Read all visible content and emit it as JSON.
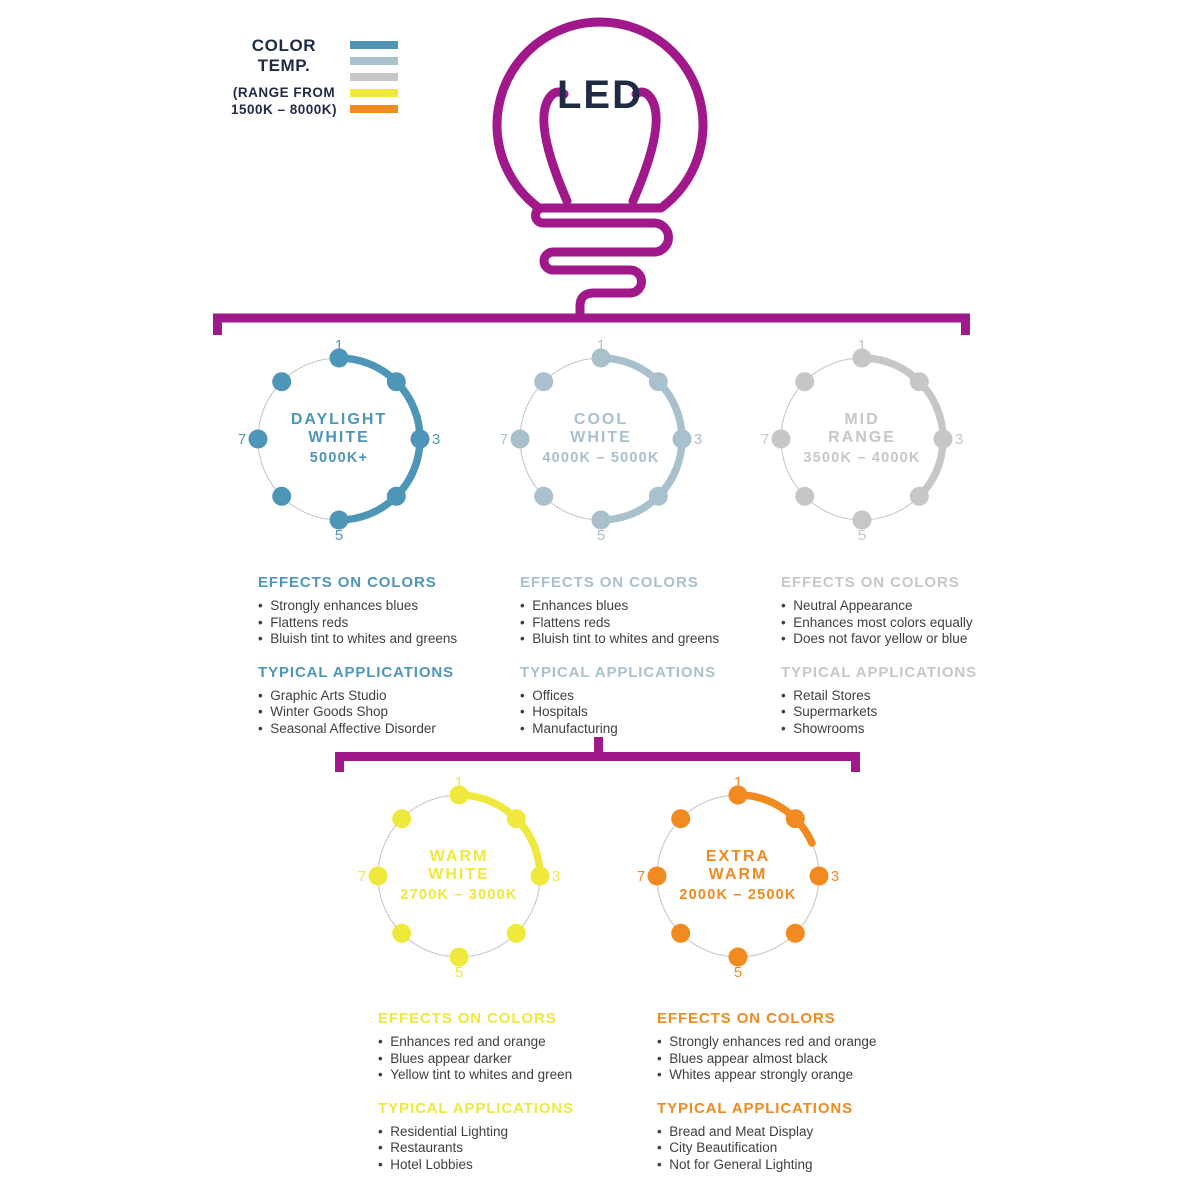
{
  "page": {
    "background": "#FFFFFF"
  },
  "colors": {
    "magenta": "#A1188B",
    "navy": "#1F2A44",
    "body_text": "#3F3F3F",
    "dial_track": "#C4C4C4"
  },
  "legend": {
    "title": "COLOR TEMP.",
    "subtitle_lines": [
      "(RANGE FROM",
      "1500K – 8000K)"
    ],
    "bar_colors": [
      "#4E96B8",
      "#A9C0CD",
      "#C7C7C9",
      "#EFE93D",
      "#F08A21"
    ]
  },
  "bulb": {
    "label": "LED"
  },
  "dial": {
    "tick_labels": {
      "top": "1",
      "right": "3",
      "bottom": "5",
      "left": "7"
    },
    "dot_count": 8
  },
  "panels": [
    {
      "name_lines": [
        "DAYLIGHT",
        "WHITE"
      ],
      "temp_range": "5000K+",
      "color": "#4E96B8",
      "coverage_deg": 180,
      "effects_title": "EFFECTS ON COLORS",
      "effects": [
        "Strongly enhances blues",
        "Flattens reds",
        "Bluish tint to whites and greens"
      ],
      "applications_title": "TYPICAL APPLICATIONS",
      "applications": [
        "Graphic Arts Studio",
        "Winter Goods Shop",
        "Seasonal Affective Disorder"
      ]
    },
    {
      "name_lines": [
        "COOL",
        "WHITE"
      ],
      "temp_range": "4000K – 5000K",
      "color": "#A9C0CD",
      "coverage_deg": 180,
      "effects_title": "EFFECTS ON COLORS",
      "effects": [
        "Enhances blues",
        "Flattens reds",
        "Bluish tint to whites and greens"
      ],
      "applications_title": "TYPICAL APPLICATIONS",
      "applications": [
        "Offices",
        "Hospitals",
        "Manufacturing"
      ]
    },
    {
      "name_lines": [
        "MID",
        "RANGE"
      ],
      "temp_range": "3500K – 4000K",
      "color": "#C7C7C9",
      "coverage_deg": 135,
      "effects_title": "EFFECTS ON COLORS",
      "effects": [
        "Neutral Appearance",
        "Enhances most colors equally",
        "Does not favor yellow or blue"
      ],
      "applications_title": "TYPICAL APPLICATIONS",
      "applications": [
        "Retail Stores",
        "Supermarkets",
        "Showrooms"
      ]
    },
    {
      "name_lines": [
        "WARM",
        "WHITE"
      ],
      "temp_range": "2700K – 3000K",
      "color": "#EFE93D",
      "coverage_deg": 90,
      "effects_title": "EFFECTS ON COLORS",
      "effects": [
        "Enhances red and orange",
        "Blues appear darker",
        "Yellow tint to whites and green"
      ],
      "applications_title": "TYPICAL APPLICATIONS",
      "applications": [
        "Residential Lighting",
        "Restaurants",
        "Hotel Lobbies"
      ]
    },
    {
      "name_lines": [
        "EXTRA",
        "WARM"
      ],
      "temp_range": "2000K – 2500K",
      "color": "#F08A21",
      "coverage_deg": 66,
      "effects_title": "EFFECTS ON COLORS",
      "effects": [
        "Strongly enhances red and orange",
        "Blues appear almost black",
        "Whites appear strongly orange"
      ],
      "applications_title": "TYPICAL APPLICATIONS",
      "applications": [
        "Bread and Meat Display",
        "City Beautification",
        "Not for General Lighting"
      ]
    }
  ]
}
